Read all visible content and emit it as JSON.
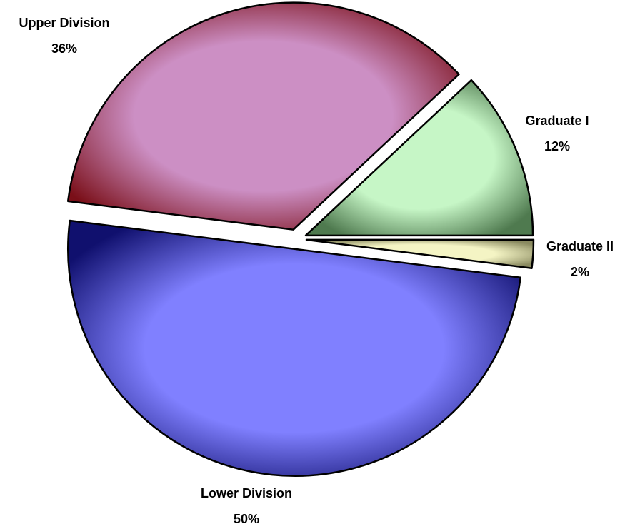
{
  "chart_data": {
    "type": "pie",
    "categories": [
      "Graduate II",
      "Lower Division",
      "Upper Division",
      "Graduate I"
    ],
    "values": [
      2,
      50,
      36,
      12
    ],
    "value_labels": [
      "2%",
      "50%",
      "36%",
      "12%"
    ],
    "colors": [
      "#f4f4c4",
      "#8080ff",
      "#cc8fc4",
      "#c6f6c6"
    ],
    "edge_colors": [
      "#8a8a60",
      "#10106e",
      "#7a0f18",
      "#4f7a4f"
    ]
  }
}
